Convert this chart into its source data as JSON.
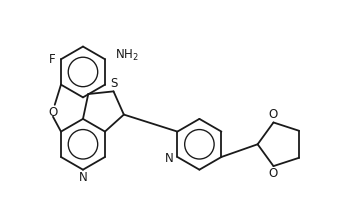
{
  "bg_color": "#ffffff",
  "line_color": "#1a1a1a",
  "line_width": 1.3,
  "font_size": 8.5,
  "fig_width": 3.6,
  "fig_height": 2.18,
  "dpi": 100,
  "xlim": [
    0,
    9.5
  ],
  "ylim": [
    -0.3,
    5.8
  ]
}
